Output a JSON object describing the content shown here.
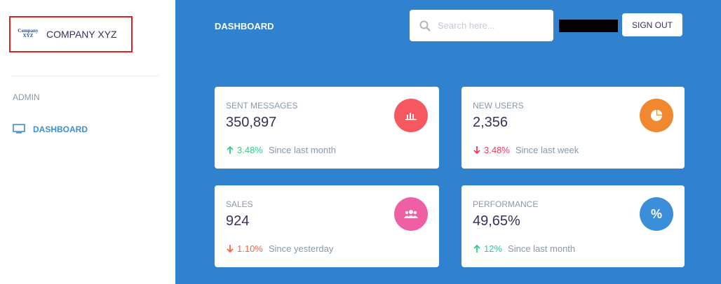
{
  "sidebar": {
    "logo_text": "Company XYZ",
    "brand": "COMPANY XYZ",
    "section": "ADMIN",
    "nav": [
      "DASHBOARD"
    ]
  },
  "header": {
    "title": "DASHBOARD",
    "search_placeholder": "Search here...",
    "button": "SIGN OUT"
  },
  "cards": [
    {
      "title": "SENT MESSAGES",
      "value": "350,897",
      "change": "3.48%",
      "since": "Since last month"
    },
    {
      "title": "NEW USERS",
      "value": "2,356",
      "change": "3.48%",
      "since": "Since last week"
    },
    {
      "title": "SALES",
      "value": "924",
      "change": "1.10%",
      "since": "Since yesterday"
    },
    {
      "title": "PERFORMANCE",
      "value": "49,65%",
      "change": "12%",
      "since": "Since last month",
      "icon": "%"
    }
  ]
}
